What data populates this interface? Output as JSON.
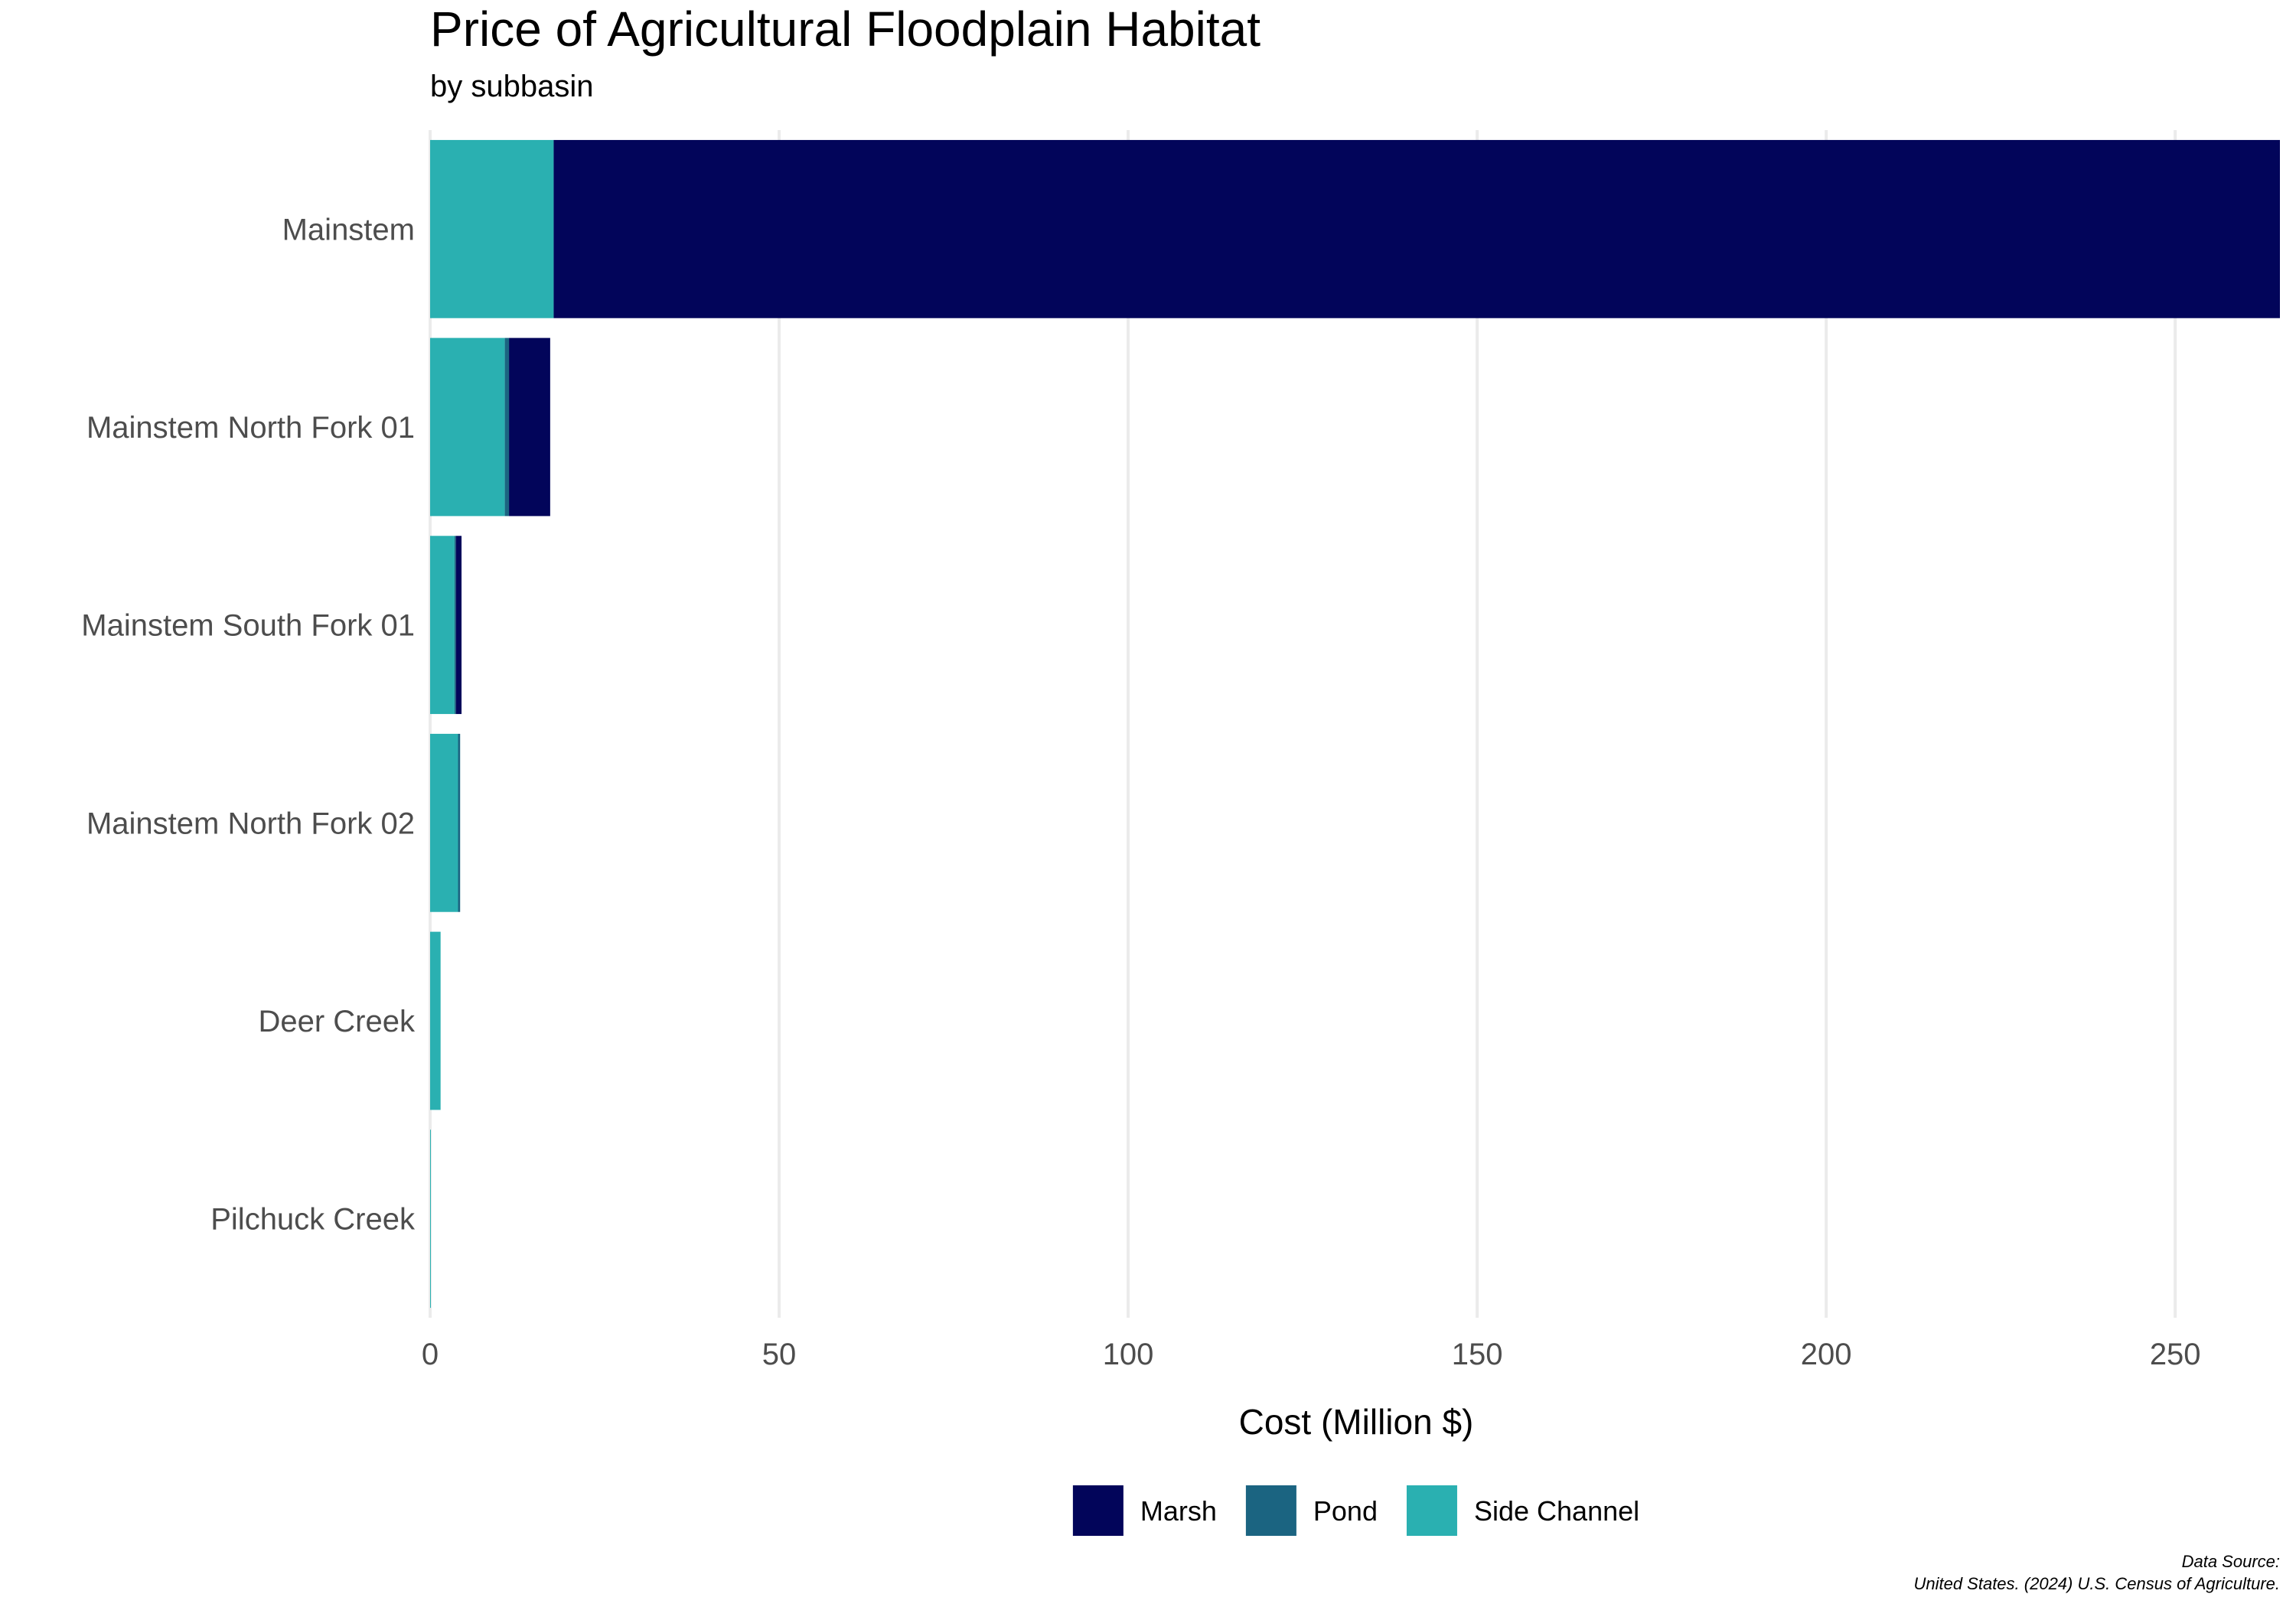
{
  "chart_data": {
    "type": "bar",
    "orientation": "horizontal",
    "stacked": true,
    "title": "Price of Agricultural Floodplain Habitat",
    "subtitle": "by subbasin",
    "xlabel": "Cost (Million $)",
    "ylabel": "",
    "xlim": [
      0,
      265
    ],
    "xticks": [
      0,
      50,
      100,
      150,
      200,
      250
    ],
    "grid": true,
    "legend_position": "bottom",
    "categories": [
      "Mainstem",
      "Mainstem North Fork  01",
      "Mainstem South Fork  01",
      "Mainstem North Fork  02",
      "Deer Creek",
      "Pilchuck Creek"
    ],
    "series": [
      {
        "name": "Side Channel",
        "color": "#2ab0b1",
        "values": [
          17.7,
          10.7,
          3.5,
          4.0,
          1.5,
          0.1
        ]
      },
      {
        "name": "Pond",
        "color": "#1b6481",
        "values": [
          0.0,
          0.6,
          0.2,
          0.3,
          0.0,
          0.0
        ]
      },
      {
        "name": "Marsh",
        "color": "#02055a",
        "values": [
          247.3,
          5.9,
          0.8,
          0.0,
          0.0,
          0.0
        ]
      }
    ],
    "legend_order": [
      "Marsh",
      "Pond",
      "Side Channel"
    ],
    "caption_line1": "Data Source:",
    "caption_line2": "United States. (2024) U.S. Census of Agriculture."
  }
}
